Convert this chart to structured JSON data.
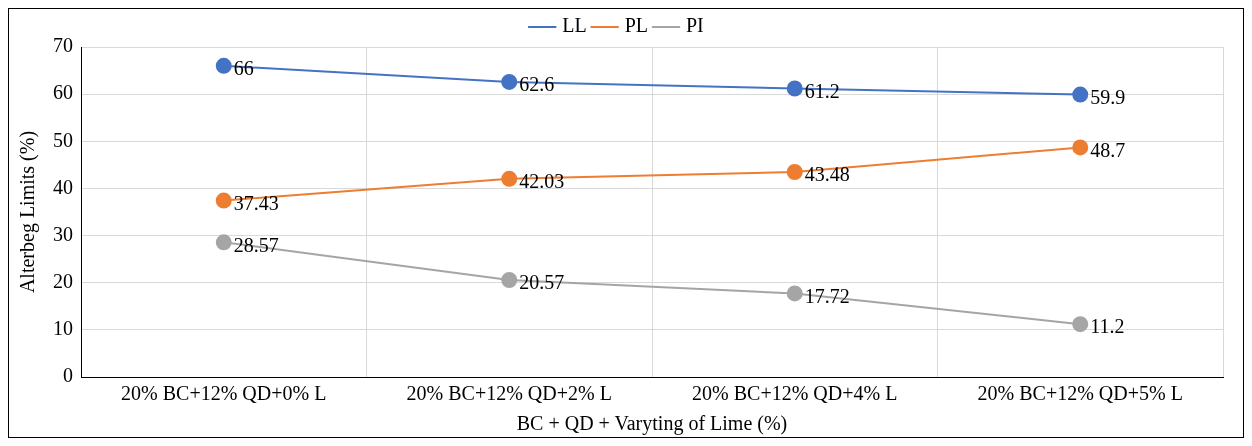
{
  "chart_data": {
    "type": "line",
    "xlabel": "BC + QD + Varyting of Lime (%)",
    "ylabel": "Alterbeg Limits (%)",
    "categories": [
      "20% BC+12% QD+0% L",
      "20% BC+12% QD+2% L",
      "20% BC+12% QD+4% L",
      "20% BC+12% QD+5% L"
    ],
    "series": [
      {
        "name": "LL",
        "color": "#4472c4",
        "values": [
          66,
          62.6,
          61.2,
          59.9
        ]
      },
      {
        "name": "PL",
        "color": "#ed7d31",
        "values": [
          37.43,
          42.03,
          43.48,
          48.7
        ]
      },
      {
        "name": "PI",
        "color": "#a5a5a5",
        "values": [
          28.57,
          20.57,
          17.72,
          11.2
        ]
      }
    ],
    "ylim": [
      0,
      70
    ],
    "yticks": [
      0,
      10,
      20,
      30,
      40,
      50,
      60,
      70
    ],
    "grid": true,
    "legend": "top",
    "marker": "circle",
    "line_style": "solid",
    "data_labels": true
  }
}
